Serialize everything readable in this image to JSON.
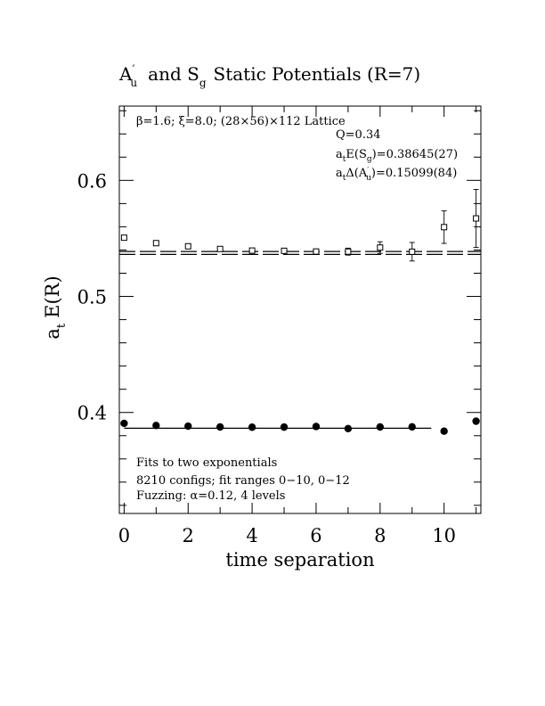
{
  "chart_data": {
    "type": "scatter",
    "title": {
      "base_A": "A",
      "sub_A": "u",
      "mid": "and S",
      "sub_S": "g",
      "tail": "Static Potentials (R=7)"
    },
    "xlabel": "time separation",
    "ylabel": {
      "base": "a",
      "sub": "t",
      "rest": "E(R)"
    },
    "xlim": [
      -0.15,
      11.15
    ],
    "ylim": [
      0.313,
      0.664
    ],
    "xticks": [
      0,
      2,
      4,
      6,
      8,
      10
    ],
    "yticks": [
      0.4,
      0.5,
      0.6
    ],
    "xtick_labels": [
      "0",
      "2",
      "4",
      "6",
      "8",
      "10"
    ],
    "ytick_labels": [
      "0.4",
      "0.5",
      "0.6"
    ],
    "grid": false,
    "series": [
      {
        "marker": "filled-circle",
        "x": [
          0,
          1,
          2,
          3,
          4,
          5,
          6,
          7,
          8,
          9,
          10,
          11
        ],
        "y": [
          0.3906,
          0.3888,
          0.3882,
          0.3875,
          0.3873,
          0.3874,
          0.3879,
          0.3861,
          0.3875,
          0.3876,
          0.3839,
          0.3925
        ],
        "err": [
          0.001,
          0.001,
          0.001,
          0.001,
          0.001,
          0.001,
          0.001,
          0.001,
          0.001,
          0.001,
          0.001,
          0.0015
        ]
      },
      {
        "marker": "open-square",
        "x": [
          0,
          1,
          2,
          3,
          4,
          5,
          6,
          7,
          8,
          9,
          10,
          11
        ],
        "y": [
          0.5506,
          0.5459,
          0.5432,
          0.5409,
          0.5395,
          0.5393,
          0.5387,
          0.5386,
          0.5421,
          0.5385,
          0.5597,
          0.5672
        ],
        "err": [
          0.0005,
          0.0005,
          0.0008,
          0.0008,
          0.001,
          0.0012,
          0.0016,
          0.003,
          0.005,
          0.008,
          0.014,
          0.025
        ]
      }
    ],
    "fits": [
      {
        "x": [
          0,
          9.6
        ],
        "y": [
          0.38645,
          0.38645
        ],
        "style": "solid"
      },
      {
        "x": [
          -0.15,
          11.15
        ],
        "y": [
          0.5362,
          0.5362
        ],
        "style": "dashed"
      },
      {
        "x": [
          -0.15,
          11.15
        ],
        "y": [
          0.5387,
          0.5387
        ],
        "style": "dashed"
      }
    ],
    "annotations": {
      "lattice": {
        "beta": "β=1.6; ξ=8.0; (28×56)×112 Lattice"
      },
      "q": "Q=0.34",
      "energy": {
        "a": "a",
        "sub_t": "t",
        "E": "E(S",
        "sub_g": "g",
        "value": ")=0.38645(27)"
      },
      "delta": {
        "a": "a",
        "sub_t": "t",
        "D": "Δ(A",
        "sub_u": "u",
        "value": ")=0.15099(84)"
      },
      "fits_note": "Fits to two exponentials",
      "configs_note": "8210 configs; fit ranges 0−10, 0−12",
      "fuzzing_note": "Fuzzing: α=0.12, 4 levels"
    }
  }
}
